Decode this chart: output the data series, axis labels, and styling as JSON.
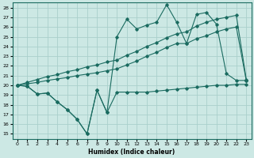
{
  "xlabel": "Humidex (Indice chaleur)",
  "bg_color": "#cce8e4",
  "grid_color": "#aad0cb",
  "line_color": "#1a6b60",
  "xlim": [
    -0.5,
    23.5
  ],
  "ylim": [
    14.5,
    28.5
  ],
  "yticks": [
    15,
    16,
    17,
    18,
    19,
    20,
    21,
    22,
    23,
    24,
    25,
    26,
    27,
    28
  ],
  "xticks": [
    0,
    1,
    2,
    3,
    4,
    5,
    6,
    7,
    8,
    9,
    10,
    11,
    12,
    13,
    14,
    15,
    16,
    17,
    18,
    19,
    20,
    21,
    22,
    23
  ],
  "line_wavy_x": [
    0,
    1,
    2,
    3,
    4,
    5,
    6,
    7,
    8,
    9,
    10,
    11,
    12,
    13,
    14,
    15,
    16,
    17,
    18,
    19,
    20,
    21,
    22,
    23
  ],
  "line_wavy_y": [
    20.0,
    19.9,
    19.1,
    19.2,
    18.3,
    17.5,
    16.5,
    15.0,
    19.5,
    17.2,
    19.3,
    19.3,
    19.3,
    19.3,
    19.4,
    19.5,
    19.6,
    19.7,
    19.8,
    19.9,
    20.0,
    20.0,
    20.1,
    20.1
  ],
  "line_diag1_x": [
    0,
    1,
    2,
    3,
    4,
    5,
    6,
    7,
    8,
    9,
    10,
    11,
    12,
    13,
    14,
    15,
    16,
    17,
    18,
    19,
    20,
    21,
    22,
    23
  ],
  "line_diag1_y": [
    20.0,
    20.15,
    20.3,
    20.5,
    20.65,
    20.8,
    21.0,
    21.15,
    21.3,
    21.5,
    21.7,
    22.1,
    22.5,
    23.0,
    23.4,
    23.9,
    24.3,
    24.3,
    24.8,
    25.1,
    25.5,
    25.8,
    26.0,
    20.5
  ],
  "line_diag2_x": [
    0,
    1,
    2,
    3,
    4,
    5,
    6,
    7,
    8,
    9,
    10,
    11,
    12,
    13,
    14,
    15,
    16,
    17,
    18,
    19,
    20,
    21,
    22,
    23
  ],
  "line_diag2_y": [
    20.0,
    20.3,
    20.6,
    20.9,
    21.1,
    21.4,
    21.6,
    21.9,
    22.1,
    22.4,
    22.6,
    23.1,
    23.5,
    24.0,
    24.4,
    24.9,
    25.3,
    25.5,
    26.1,
    26.5,
    26.8,
    27.0,
    27.2,
    20.6
  ],
  "line_jagged_x": [
    0,
    1,
    2,
    3,
    4,
    5,
    6,
    7,
    8,
    9,
    10,
    11,
    12,
    13,
    14,
    15,
    16,
    17,
    18,
    19,
    20,
    21,
    22,
    23
  ],
  "line_jagged_y": [
    20.0,
    19.9,
    19.1,
    19.2,
    18.3,
    17.5,
    16.5,
    15.0,
    19.5,
    17.2,
    25.0,
    26.8,
    25.8,
    26.2,
    26.5,
    28.3,
    26.5,
    24.3,
    27.3,
    27.5,
    26.3,
    21.2,
    20.5,
    20.5
  ]
}
